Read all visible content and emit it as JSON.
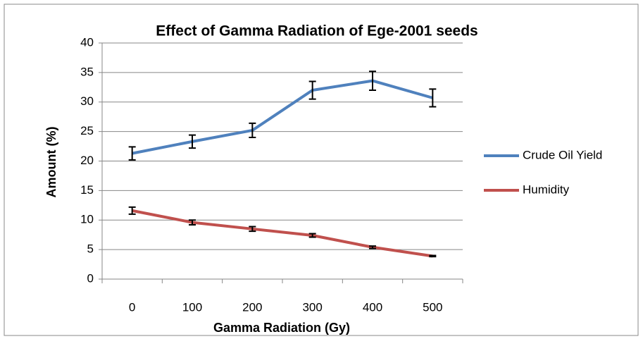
{
  "chart_data": {
    "type": "line",
    "title": "Effect of Gamma Radiation of Ege-2001 seeds",
    "xlabel": "Gamma Radiation (Gy)",
    "ylabel": "Amount (%)",
    "categories": [
      "0",
      "100",
      "200",
      "300",
      "400",
      "500"
    ],
    "series": [
      {
        "name": "Crude Oil Yield",
        "color": "#4f81bd",
        "values": [
          21.3,
          23.3,
          25.2,
          32,
          33.6,
          30.7
        ],
        "errors": [
          1.1,
          1.1,
          1.2,
          1.5,
          1.6,
          1.5
        ]
      },
      {
        "name": "Humidity",
        "color": "#c0504d",
        "values": [
          11.6,
          9.6,
          8.5,
          7.4,
          5.4,
          3.9
        ],
        "errors": [
          0.6,
          0.4,
          0.4,
          0.3,
          0.2,
          0.1
        ]
      }
    ],
    "ylim": [
      0,
      40
    ],
    "yticks": [
      0,
      5,
      10,
      15,
      20,
      25,
      30,
      35,
      40
    ],
    "grid": true,
    "legend": "right"
  }
}
